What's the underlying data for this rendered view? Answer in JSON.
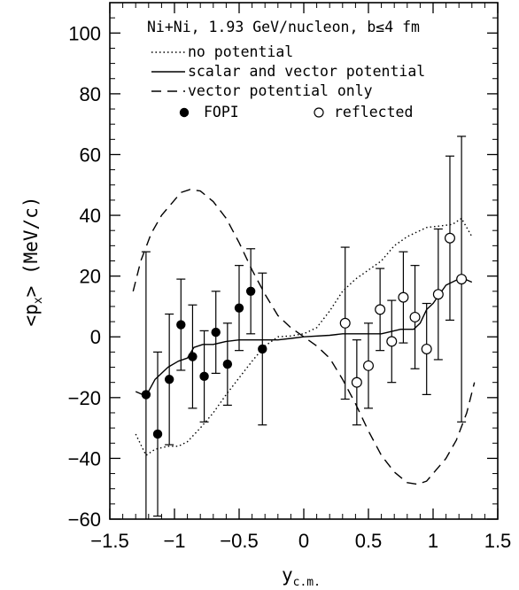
{
  "chart_data": {
    "type": "line",
    "title": "Ni+Ni, 1.93 GeV/nucleon, b≤4 fm",
    "xlabel": {
      "main": "y",
      "sub": "c.m."
    },
    "ylabel": {
      "pre": "<p",
      "sub": "x",
      "post": "> (MeV/c)"
    },
    "xlim": [
      -1.5,
      1.5
    ],
    "ylim": [
      -60,
      110
    ],
    "xticks": [
      -1.5,
      -1,
      -0.5,
      0,
      0.5,
      1,
      1.5
    ],
    "xtick_labels": [
      "−1.5",
      "−1",
      "−0.5",
      "0",
      "0.5",
      "1",
      "1.5"
    ],
    "yticks": [
      -60,
      -40,
      -20,
      0,
      20,
      40,
      60,
      80,
      100
    ],
    "ytick_labels": [
      "−60",
      "−40",
      "−20",
      "0",
      "20",
      "40",
      "60",
      "80",
      "100"
    ],
    "grid": false,
    "legend_position": "top",
    "series": [
      {
        "name": "no potential",
        "style": "dotted",
        "points": [
          [
            -1.3,
            -32
          ],
          [
            -1.22,
            -39
          ],
          [
            -1.15,
            -37
          ],
          [
            -1.05,
            -36
          ],
          [
            -0.97,
            -36
          ],
          [
            -0.9,
            -34.5
          ],
          [
            -0.8,
            -30
          ],
          [
            -0.7,
            -25
          ],
          [
            -0.6,
            -19
          ],
          [
            -0.5,
            -13.5
          ],
          [
            -0.4,
            -8
          ],
          [
            -0.3,
            -3
          ],
          [
            -0.2,
            0
          ],
          [
            -0.1,
            0.3
          ],
          [
            0,
            1
          ],
          [
            0.1,
            3
          ],
          [
            0.2,
            8.5
          ],
          [
            0.3,
            15
          ],
          [
            0.4,
            19
          ],
          [
            0.5,
            22
          ],
          [
            0.6,
            25
          ],
          [
            0.7,
            30
          ],
          [
            0.8,
            33
          ],
          [
            0.9,
            35
          ],
          [
            0.95,
            36
          ],
          [
            1.05,
            36.5
          ],
          [
            1.15,
            37
          ],
          [
            1.22,
            39
          ],
          [
            1.3,
            33
          ]
        ]
      },
      {
        "name": "scalar and vector potential",
        "style": "solid",
        "points": [
          [
            -1.3,
            -18
          ],
          [
            -1.22,
            -19.5
          ],
          [
            -1.15,
            -14
          ],
          [
            -1.05,
            -10
          ],
          [
            -0.97,
            -8
          ],
          [
            -0.9,
            -7
          ],
          [
            -0.85,
            -3.5
          ],
          [
            -0.78,
            -2.5
          ],
          [
            -0.7,
            -2.5
          ],
          [
            -0.6,
            -1.5
          ],
          [
            -0.5,
            -1
          ],
          [
            -0.4,
            -1
          ],
          [
            -0.3,
            -1
          ],
          [
            -0.2,
            -1
          ],
          [
            -0.1,
            -0.5
          ],
          [
            0,
            0
          ],
          [
            0.2,
            0.5
          ],
          [
            0.3,
            1
          ],
          [
            0.5,
            1
          ],
          [
            0.6,
            1
          ],
          [
            0.75,
            2.5
          ],
          [
            0.85,
            2.5
          ],
          [
            0.9,
            4.5
          ],
          [
            0.95,
            9
          ],
          [
            1,
            11
          ],
          [
            1.1,
            17
          ],
          [
            1.22,
            19.5
          ],
          [
            1.3,
            18
          ]
        ]
      },
      {
        "name": "vector potential only",
        "style": "dashed",
        "points": [
          [
            -1.32,
            15
          ],
          [
            -1.26,
            25
          ],
          [
            -1.18,
            34
          ],
          [
            -1.1,
            40
          ],
          [
            -1.02,
            44
          ],
          [
            -0.95,
            47.5
          ],
          [
            -0.88,
            48.5
          ],
          [
            -0.8,
            48
          ],
          [
            -0.7,
            44.5
          ],
          [
            -0.6,
            39
          ],
          [
            -0.5,
            31
          ],
          [
            -0.4,
            22
          ],
          [
            -0.3,
            14
          ],
          [
            -0.2,
            7
          ],
          [
            -0.1,
            3
          ],
          [
            0,
            0
          ],
          [
            0.1,
            -3
          ],
          [
            0.2,
            -7
          ],
          [
            0.3,
            -14
          ],
          [
            0.4,
            -22
          ],
          [
            0.5,
            -31
          ],
          [
            0.6,
            -39
          ],
          [
            0.7,
            -44.5
          ],
          [
            0.8,
            -48
          ],
          [
            0.88,
            -48.5
          ],
          [
            0.95,
            -47.5
          ],
          [
            1.02,
            -44
          ],
          [
            1.1,
            -40
          ],
          [
            1.18,
            -34
          ],
          [
            1.26,
            -25
          ],
          [
            1.32,
            -15
          ]
        ]
      }
    ],
    "markers": [
      {
        "name": "FOPI",
        "filled": true,
        "points": [
          {
            "x": -1.22,
            "y": -19,
            "err": 47
          },
          {
            "x": -1.13,
            "y": -32,
            "err": 27
          },
          {
            "x": -1.04,
            "y": -14,
            "err": 21.5
          },
          {
            "x": -0.95,
            "y": 4,
            "err": 15
          },
          {
            "x": -0.86,
            "y": -6.5,
            "err": 17
          },
          {
            "x": -0.77,
            "y": -13,
            "err": 15
          },
          {
            "x": -0.68,
            "y": 1.5,
            "err": 13.5
          },
          {
            "x": -0.59,
            "y": -9,
            "err": 13.5
          },
          {
            "x": -0.5,
            "y": 9.5,
            "err": 14
          },
          {
            "x": -0.41,
            "y": 15,
            "err": 14
          },
          {
            "x": -0.32,
            "y": -4,
            "err": 25
          }
        ]
      },
      {
        "name": "reflected",
        "filled": false,
        "points": [
          {
            "x": 0.32,
            "y": 4.5,
            "err": 25
          },
          {
            "x": 0.41,
            "y": -15,
            "err": 14
          },
          {
            "x": 0.5,
            "y": -9.5,
            "err": 14
          },
          {
            "x": 0.59,
            "y": 9,
            "err": 13.5
          },
          {
            "x": 0.68,
            "y": -1.5,
            "err": 13.5
          },
          {
            "x": 0.77,
            "y": 13,
            "err": 15
          },
          {
            "x": 0.86,
            "y": 6.5,
            "err": 17
          },
          {
            "x": 0.95,
            "y": -4,
            "err": 15
          },
          {
            "x": 1.04,
            "y": 14,
            "err": 21.5
          },
          {
            "x": 1.13,
            "y": 32.5,
            "err": 27
          },
          {
            "x": 1.22,
            "y": 19,
            "err": 47
          }
        ]
      }
    ]
  }
}
